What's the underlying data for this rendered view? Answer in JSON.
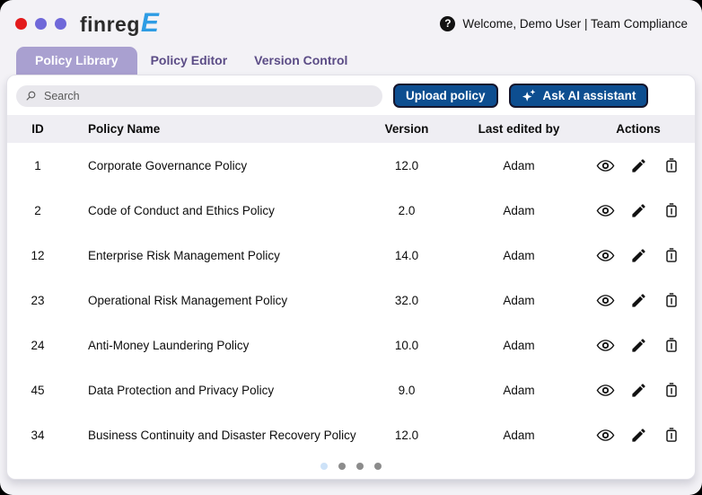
{
  "window": {
    "logo_text": "finreg",
    "logo_accent": "E",
    "help_label": "?",
    "welcome_text": "Welcome, Demo User | Team Compliance"
  },
  "tabs": [
    {
      "label": "Policy Library",
      "active": true
    },
    {
      "label": "Policy Editor",
      "active": false
    },
    {
      "label": "Version Control",
      "active": false
    }
  ],
  "toolbar": {
    "search_placeholder": "Search",
    "search_value": "",
    "upload_label": "Upload policy",
    "ask_ai_label": "Ask AI assistant"
  },
  "table": {
    "columns": [
      "ID",
      "Policy Name",
      "Version",
      "Last edited by",
      "Actions"
    ],
    "actions": [
      "view",
      "edit",
      "delete"
    ],
    "rows": [
      {
        "id": "1",
        "name": "Corporate Governance Policy",
        "version": "12.0",
        "last_edited_by": "Adam"
      },
      {
        "id": "2",
        "name": "Code of Conduct and Ethics Policy",
        "version": "2.0",
        "last_edited_by": "Adam"
      },
      {
        "id": "12",
        "name": "Enterprise Risk Management Policy",
        "version": "14.0",
        "last_edited_by": "Adam"
      },
      {
        "id": "23",
        "name": "Operational Risk Management Policy",
        "version": "32.0",
        "last_edited_by": "Adam"
      },
      {
        "id": "24",
        "name": "Anti-Money Laundering Policy",
        "version": "10.0",
        "last_edited_by": "Adam"
      },
      {
        "id": "45",
        "name": "Data Protection and Privacy Policy",
        "version": "9.0",
        "last_edited_by": "Adam"
      },
      {
        "id": "34",
        "name": "Business Continuity and Disaster Recovery Policy",
        "version": "12.0",
        "last_edited_by": "Adam"
      }
    ]
  },
  "pagination": {
    "total_dots": 4,
    "active_index": 0
  },
  "colors": {
    "window_bg": "#f3f2f6",
    "dot_red": "#e31b1c",
    "dot_purple": "#6f68d9",
    "logo_accent_blue": "#2e9ce4",
    "tab_active_bg": "#a9a0d0",
    "tab_inactive_text": "#5b4c86",
    "button_blue": "#0d4e90",
    "table_header_bg": "#efeef3",
    "pagination_active": "#cde2f8",
    "pagination_inactive": "#8c8c8c"
  }
}
